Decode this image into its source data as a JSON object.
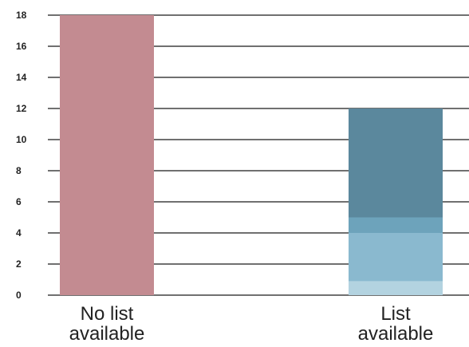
{
  "chart_data": {
    "type": "bar",
    "stacked": true,
    "categories": [
      "No list\navailable",
      "List\navailable"
    ],
    "series": [
      {
        "values": [
          0,
          0.9
        ],
        "color": "#b3d3e0"
      },
      {
        "values": [
          0,
          3.1
        ],
        "color": "#8ab9cf"
      },
      {
        "values": [
          0,
          1.0
        ],
        "color": "#6da3bb"
      },
      {
        "values": [
          0,
          7.0
        ],
        "color": "#5b889d"
      },
      {
        "values": [
          18,
          0
        ],
        "color": "#c38b91"
      }
    ],
    "ylim": [
      0,
      18
    ],
    "yticks": [
      0,
      2,
      4,
      6,
      8,
      10,
      12,
      14,
      16,
      18
    ],
    "title": "",
    "xlabel": "",
    "ylabel": "",
    "grid": true,
    "legend": "none"
  }
}
